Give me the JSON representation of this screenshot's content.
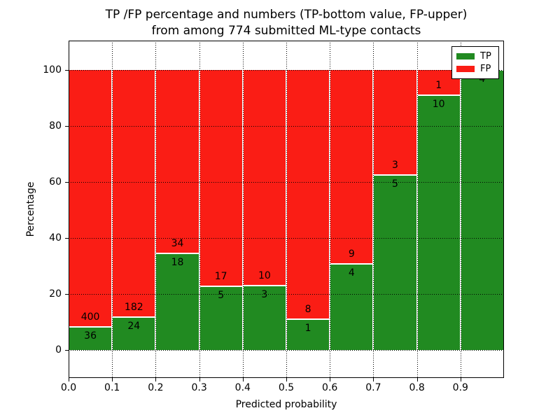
{
  "chart_data": {
    "type": "bar",
    "stacked": true,
    "normalized_to_percent": true,
    "title_line1": "TP /FP percentage and numbers (TP-bottom value, FP-upper)",
    "title_line2": "from among 774 submitted ML-type contacts",
    "xlabel": "Predicted probability",
    "ylabel": "Percentage",
    "total_contacts": 774,
    "categories": [
      "0.0-0.1",
      "0.1-0.2",
      "0.2-0.3",
      "0.3-0.4",
      "0.4-0.5",
      "0.5-0.6",
      "0.6-0.7",
      "0.7-0.8",
      "0.8-0.9",
      "0.9-1.0"
    ],
    "series": [
      {
        "name": "TP",
        "color": "#218a21",
        "values": [
          36,
          24,
          18,
          5,
          3,
          1,
          4,
          5,
          10,
          4
        ]
      },
      {
        "name": "FP",
        "color": "#fa1d15",
        "values": [
          400,
          182,
          34,
          17,
          10,
          8,
          9,
          3,
          1,
          0
        ]
      }
    ],
    "x_tick_labels": [
      "0.0",
      "0.1",
      "0.2",
      "0.3",
      "0.4",
      "0.5",
      "0.6",
      "0.7",
      "0.8",
      "0.9"
    ],
    "y_tick_values": [
      0,
      20,
      40,
      60,
      80,
      100
    ],
    "xlim": [
      0.0,
      1.0
    ],
    "ylim": [
      -10,
      110
    ],
    "grid": "dotted",
    "legend": {
      "position": "upper right",
      "entries": [
        "TP",
        "FP"
      ]
    },
    "bar_label_rule": "TP count printed at bottom of boundary, FP count printed above boundary; FP=0 labels omitted"
  }
}
